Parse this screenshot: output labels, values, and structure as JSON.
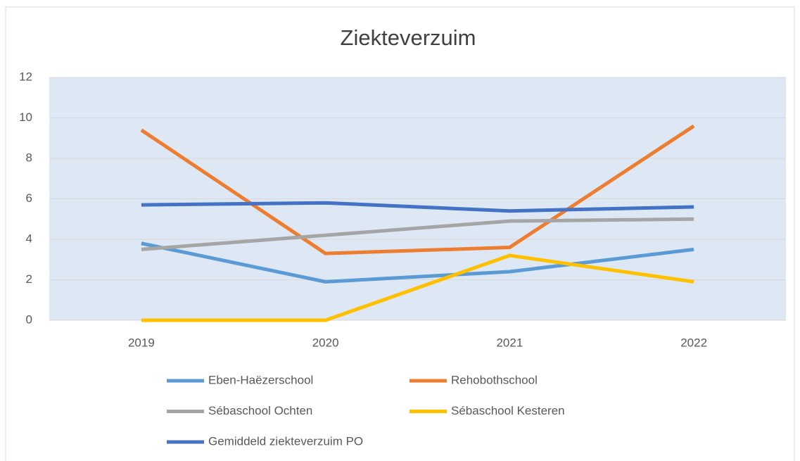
{
  "chart_data": {
    "type": "line",
    "title": "Ziekteverzuim",
    "categories": [
      "2019",
      "2020",
      "2021",
      "2022"
    ],
    "series": [
      {
        "name": "Eben-Haëzerschool",
        "color": "#5b9bd5",
        "values": [
          3.8,
          1.9,
          2.4,
          3.5
        ]
      },
      {
        "name": "Rehobothschool",
        "color": "#ed7d31",
        "values": [
          9.4,
          3.3,
          3.6,
          9.6
        ]
      },
      {
        "name": "Sébaschool Ochten",
        "color": "#a5a5a5",
        "values": [
          3.5,
          4.2,
          4.9,
          5.0
        ]
      },
      {
        "name": "Sébaschool Kesteren",
        "color": "#ffc000",
        "values": [
          0,
          0,
          3.2,
          1.9
        ]
      },
      {
        "name": "Gemiddeld ziekteverzuim PO",
        "color": "#4472c4",
        "values": [
          5.7,
          5.8,
          5.4,
          5.6
        ]
      }
    ],
    "ylim": [
      0,
      12
    ],
    "yticks": [
      0,
      2,
      4,
      6,
      8,
      10,
      12
    ],
    "grid": true,
    "legend": "bottom"
  }
}
